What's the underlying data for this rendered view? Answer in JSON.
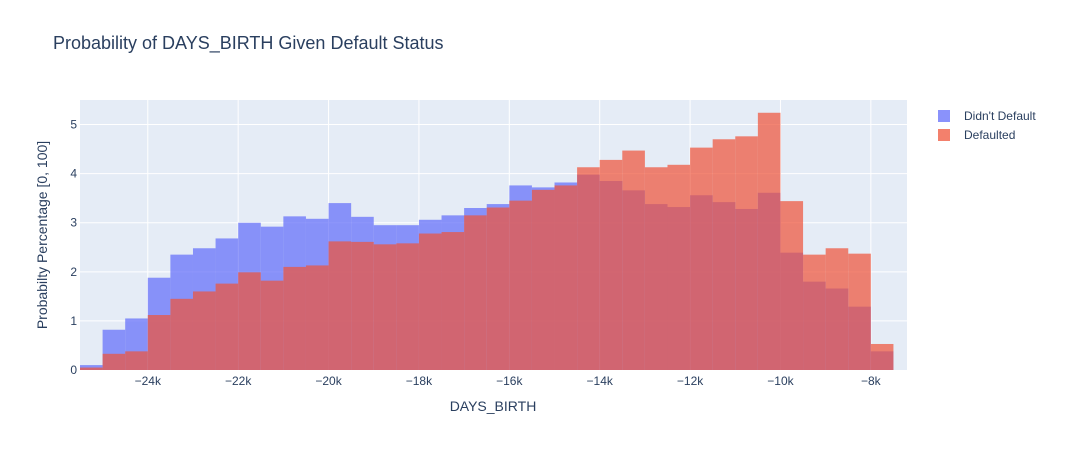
{
  "chart_data": {
    "type": "bar",
    "title": "Probability of DAYS_BIRTH Given Default Status",
    "xlabel": "DAYS_BIRTH",
    "ylabel": "Probabilty Percentage [0, 100]",
    "xlim": [
      -25500,
      -7200
    ],
    "ylim": [
      0,
      5.5
    ],
    "bin_start": -25500,
    "bin_width": 500,
    "xticks": [
      -24000,
      -22000,
      -20000,
      -18000,
      -16000,
      -14000,
      -12000,
      -10000,
      -8000
    ],
    "xtick_labels": [
      "−24k",
      "−22k",
      "−20k",
      "−18k",
      "−16k",
      "−14k",
      "−12k",
      "−10k",
      "−8k"
    ],
    "yticks": [
      0,
      1,
      2,
      3,
      4,
      5
    ],
    "ytick_labels": [
      "0",
      "1",
      "2",
      "3",
      "4",
      "5"
    ],
    "grid": true,
    "legend_position": "top-right",
    "series": [
      {
        "name": "Didn't Default",
        "color": "#636efa",
        "values": [
          0.1,
          0.82,
          1.05,
          1.88,
          2.35,
          2.48,
          2.68,
          3.0,
          2.92,
          3.13,
          3.08,
          3.4,
          3.12,
          2.95,
          2.95,
          3.06,
          3.15,
          3.3,
          3.38,
          3.76,
          3.72,
          3.82,
          3.98,
          3.85,
          3.66,
          3.38,
          3.32,
          3.56,
          3.42,
          3.28,
          3.61,
          2.39,
          1.8,
          1.66,
          1.29,
          0.38
        ]
      },
      {
        "name": "Defaulted",
        "color": "#ef553b",
        "values": [
          0.05,
          0.33,
          0.38,
          1.12,
          1.45,
          1.6,
          1.76,
          1.99,
          1.82,
          2.1,
          2.13,
          2.62,
          2.61,
          2.56,
          2.58,
          2.78,
          2.81,
          3.15,
          3.31,
          3.45,
          3.67,
          3.76,
          4.13,
          4.28,
          4.47,
          4.13,
          4.18,
          4.53,
          4.7,
          4.76,
          5.24,
          3.44,
          2.35,
          2.48,
          2.37,
          0.53
        ]
      }
    ]
  }
}
